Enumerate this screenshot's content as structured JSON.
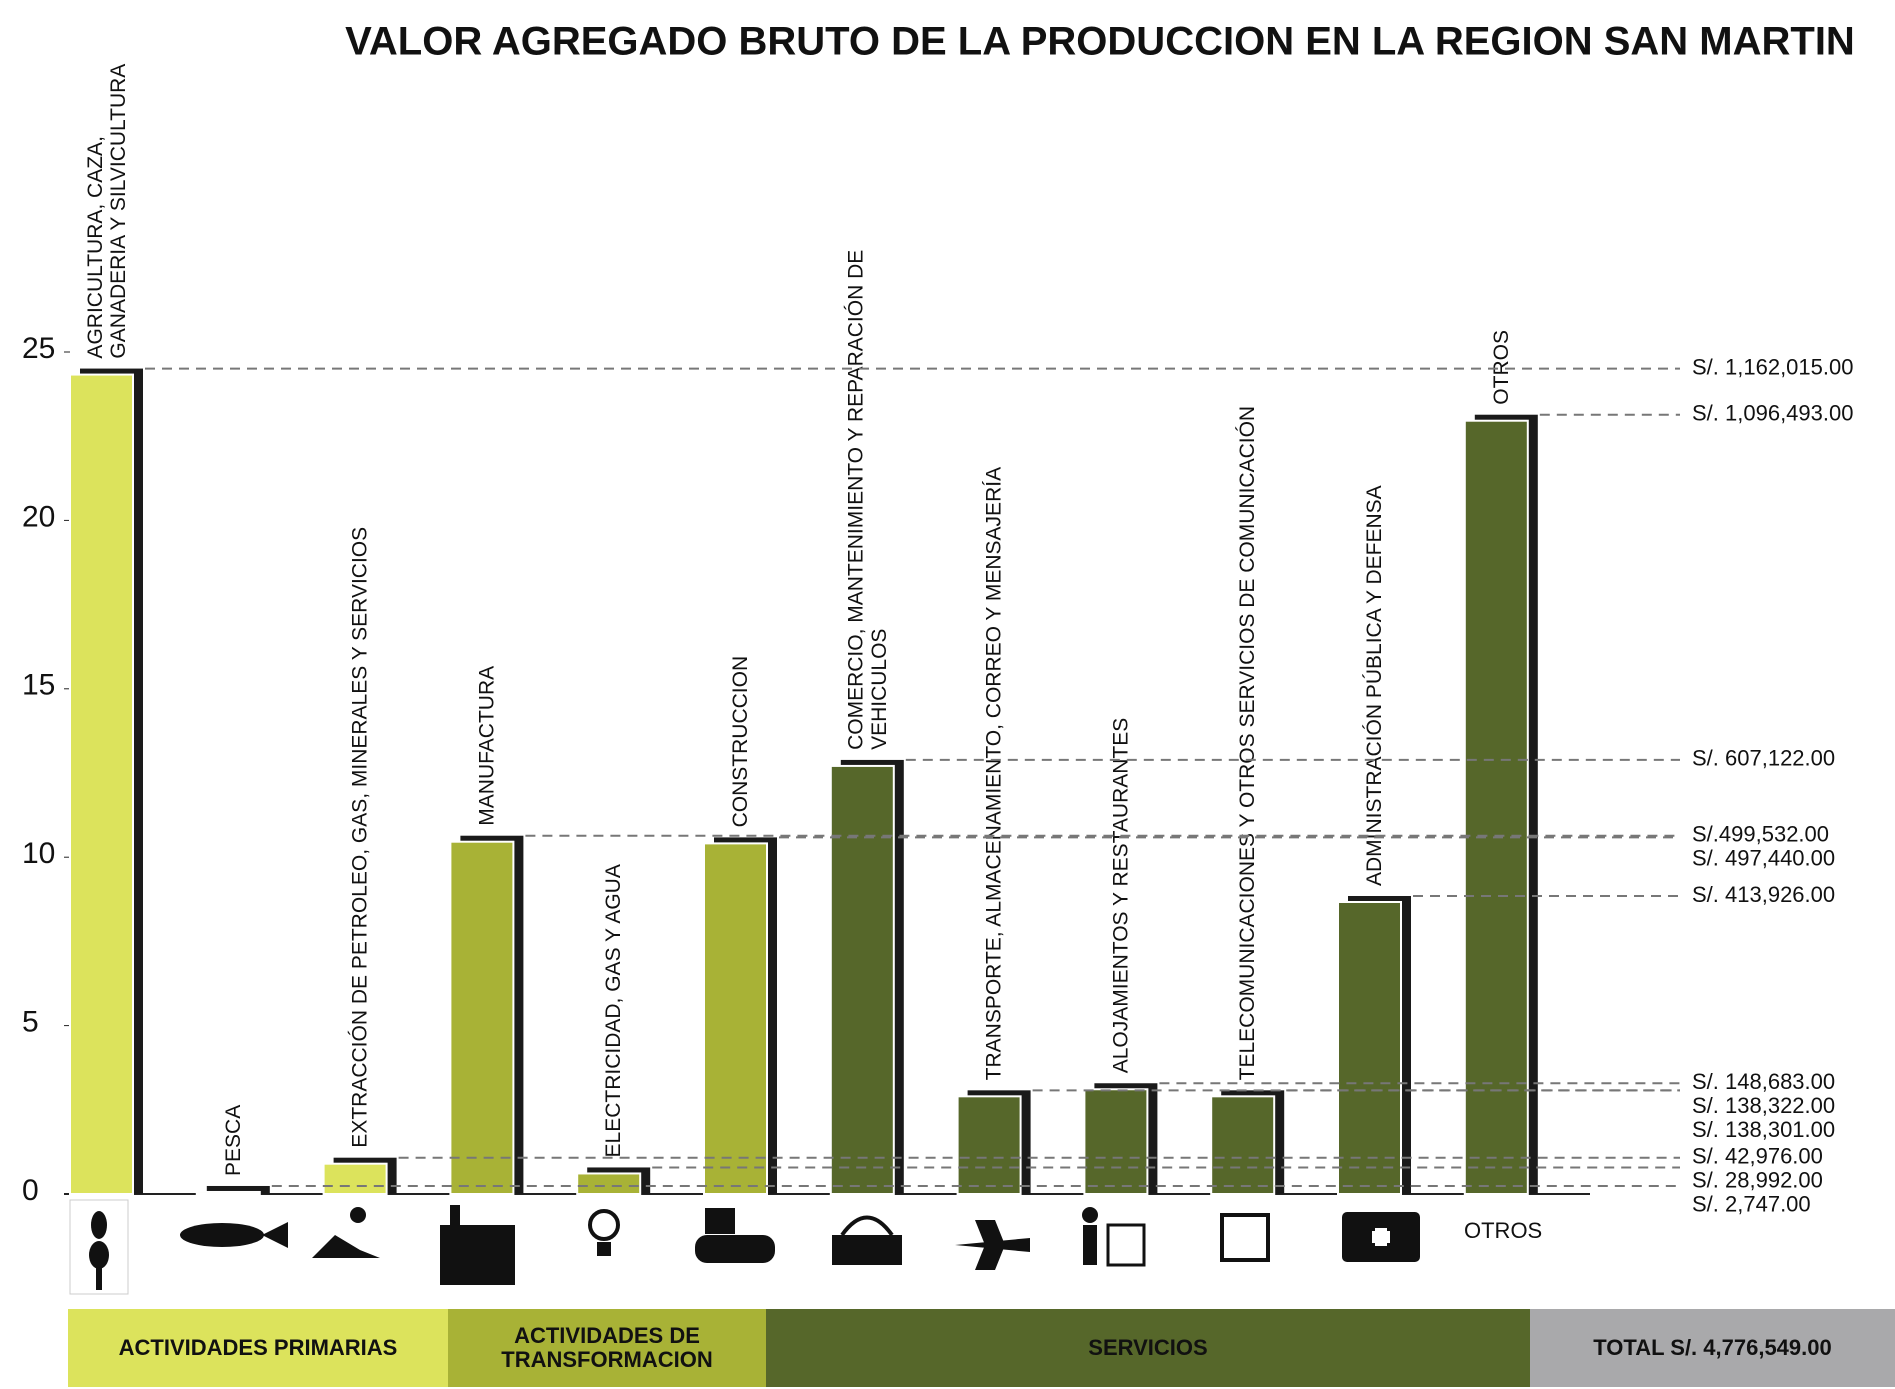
{
  "chart_data": {
    "type": "bar",
    "title": "VALOR AGREGADO BRUTO DE LA PRODUCCION EN LA REGION SAN MARTIN",
    "categories": [
      "AGRICULTURA, CAZA,\nGANADERIA Y SILVICULTURA",
      "PESCA",
      "EXTRACCIÓN DE PETROLEO, GAS, MINERALES Y SERVICIOS",
      "MANUFACTURA",
      "ELECTRICIDAD, GAS Y AGUA",
      "CONSTRUCCION",
      "COMERCIO, MANTENIMIENTO Y REPARACIÓN DE\nVEHICULOS",
      "TRANSPORTE, ALMACENAMIENTO, CORREO Y MENSAJERÍA",
      "ALOJAMIENTOS Y RESTAURANTES",
      "TELECOMUNICACIONES Y OTROS SERVICIOS DE COMUNICACIÓN",
      "ADMINISTRACIÓN PÚBLICA Y DEFENSA",
      "OTROS"
    ],
    "values": [
      24.33,
      0.06,
      0.9,
      10.46,
      0.61,
      10.41,
      12.71,
      2.9,
      3.11,
      2.9,
      8.67,
      22.96
    ],
    "amounts": [
      "S/. 1,162,015.00",
      "S/. 2,747.00",
      "S/. 42,976.00",
      "S/.499,532.00",
      "S/. 28,992.00",
      "S/. 497,440.00",
      "S/. 607,122.00",
      "S/. 138,322.00",
      "S/. 148,683.00",
      "S/. 138,301.00",
      "S/. 413,926.00",
      "S/. 1,096,493.00"
    ],
    "colors": [
      "#dce35c",
      "#dce35c",
      "#dce35c",
      "#a8b236",
      "#a8b236",
      "#a8b236",
      "#56672a",
      "#56672a",
      "#56672a",
      "#56672a",
      "#56672a",
      "#56672a"
    ],
    "ylim": [
      0,
      25
    ],
    "yticks": [
      0,
      5,
      10,
      15,
      20,
      25
    ],
    "icon_label": "OTROS",
    "groups": [
      {
        "label": "ACTIVIDADES PRIMARIAS",
        "color": "#dce35c"
      },
      {
        "label": "ACTIVIDADES DE\nTRANSFORMACION",
        "color": "#a8b236"
      },
      {
        "label": "SERVICIOS",
        "color": "#56672a"
      },
      {
        "label": "TOTAL   S/. 4,776,549.00",
        "color": "#a9a9ab"
      }
    ]
  }
}
